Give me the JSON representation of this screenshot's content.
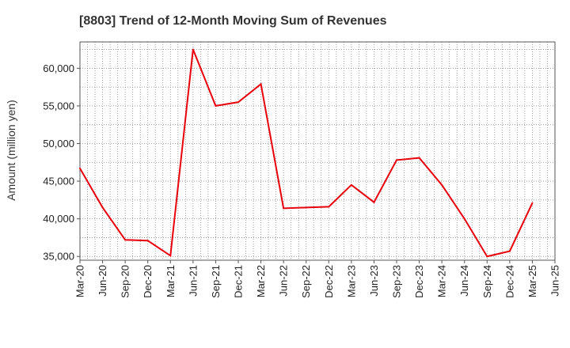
{
  "chart_data": {
    "type": "line",
    "title": "[8803]  Trend of 12-Month Moving Sum of Revenues",
    "xlabel": "",
    "ylabel": "Amount (million yen)",
    "ylim": [
      34500,
      63500
    ],
    "y_ticks": [
      35000,
      40000,
      45000,
      50000,
      55000,
      60000
    ],
    "y_tick_labels": [
      "35,000",
      "40,000",
      "45,000",
      "50,000",
      "55,000",
      "60,000"
    ],
    "grid": true,
    "x": [
      "Mar-20",
      "Jun-20",
      "Sep-20",
      "Dec-20",
      "Mar-21",
      "Jun-21",
      "Sep-21",
      "Dec-21",
      "Mar-22",
      "Jun-22",
      "Sep-22",
      "Dec-22",
      "Mar-23",
      "Jun-23",
      "Sep-23",
      "Dec-23",
      "Mar-24",
      "Jun-24",
      "Sep-24",
      "Dec-24",
      "Mar-25",
      "Jun-25"
    ],
    "series": [
      {
        "name": "",
        "color": "#e8000b",
        "values": [
          46700,
          41500,
          37200,
          37100,
          35100,
          62500,
          55000,
          55500,
          57900,
          41400,
          41500,
          41600,
          44500,
          42200,
          47800,
          48100,
          44500,
          40000,
          35000,
          35700,
          42100,
          null
        ]
      }
    ]
  }
}
